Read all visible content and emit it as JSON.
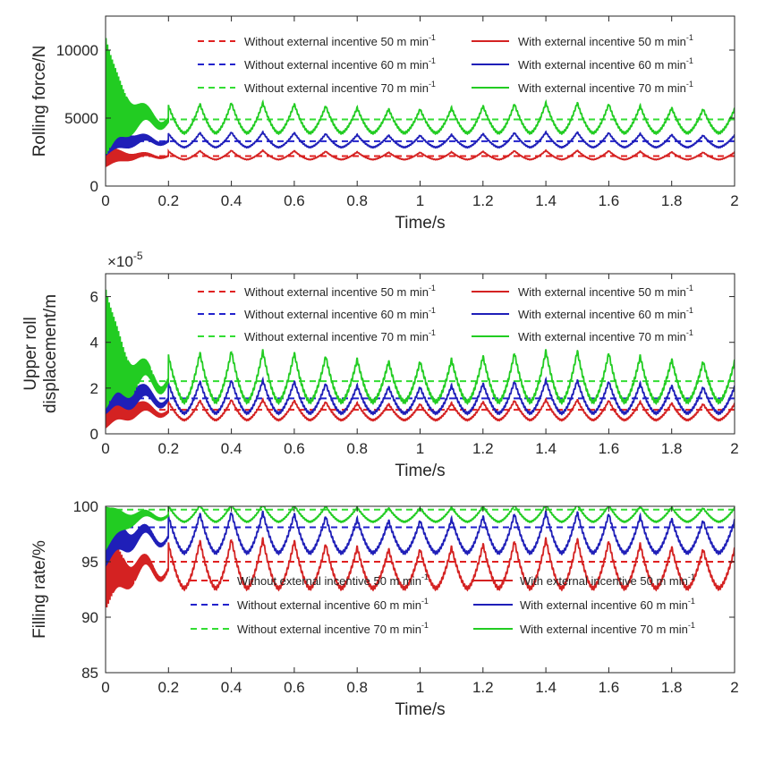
{
  "chart_data": [
    {
      "type": "line",
      "xlabel": "Time/s",
      "ylabel": "Rolling force/N",
      "exponent_label": "",
      "xlim": [
        0,
        2
      ],
      "ylim": [
        0,
        12500
      ],
      "xticks": [
        0,
        0.2,
        0.4,
        0.6,
        0.8,
        1,
        1.2,
        1.4,
        1.6,
        1.8,
        2
      ],
      "yticks": [
        0,
        5000,
        10000
      ],
      "grid": false,
      "legend_position": "top",
      "series": [
        {
          "name": "Without external incentive 50 m min",
          "sup": "-1",
          "style": "dashed",
          "color": "#e02020",
          "kind": "const",
          "value": 2200
        },
        {
          "name": "With external incentive 50 m min",
          "sup": "-1",
          "style": "solid",
          "color": "#d42222",
          "kind": "periodic",
          "base": 1950,
          "amp": 600,
          "startup_peak": 3000,
          "startup_min": 1400
        },
        {
          "name": "Without external incentive 60 m min",
          "sup": "-1",
          "style": "dashed",
          "color": "#2222cc",
          "kind": "const",
          "value": 3300
        },
        {
          "name": "With external incentive 60 m min",
          "sup": "-1",
          "style": "solid",
          "color": "#1f1fb8",
          "kind": "periodic",
          "base": 2850,
          "amp": 1000,
          "startup_peak": 5500,
          "startup_min": 2200
        },
        {
          "name": "Without external incentive 70 m min",
          "sup": "-1",
          "style": "dashed",
          "color": "#33dd33",
          "kind": "const",
          "value": 4900
        },
        {
          "name": "With external incentive 70 m min",
          "sup": "-1",
          "style": "solid",
          "color": "#22cc22",
          "kind": "periodic",
          "base": 3900,
          "amp": 2000,
          "startup_peak": 11200,
          "startup_min": 2000
        }
      ]
    },
    {
      "type": "line",
      "xlabel": "Time/s",
      "ylabel": "Upper roll",
      "ylabel2": "displacement/m",
      "exponent_label": "×10",
      "exponent_sup": "-5",
      "xlim": [
        0,
        2
      ],
      "ylim": [
        0,
        7
      ],
      "xticks": [
        0,
        0.2,
        0.4,
        0.6,
        0.8,
        1,
        1.2,
        1.4,
        1.6,
        1.8,
        2
      ],
      "yticks": [
        0,
        2,
        4,
        6
      ],
      "grid": false,
      "legend_position": "top",
      "series": [
        {
          "name": "Without external incentive 50 m min",
          "sup": "-1",
          "style": "dashed",
          "color": "#e02020",
          "kind": "const",
          "value": 1.05
        },
        {
          "name": "With external incentive 50 m min",
          "sup": "-1",
          "style": "solid",
          "color": "#d42222",
          "kind": "periodic",
          "base": 0.6,
          "amp": 0.8,
          "startup_peak": 3.0,
          "startup_min": 0.2
        },
        {
          "name": "Without external incentive 60 m min",
          "sup": "-1",
          "style": "dashed",
          "color": "#2222cc",
          "kind": "const",
          "value": 1.55
        },
        {
          "name": "With external incentive 60 m min",
          "sup": "-1",
          "style": "solid",
          "color": "#1f1fb8",
          "kind": "periodic",
          "base": 0.9,
          "amp": 1.3,
          "startup_peak": 4.5,
          "startup_min": 0.8
        },
        {
          "name": "Without external incentive 70 m min",
          "sup": "-1",
          "style": "dashed",
          "color": "#33dd33",
          "kind": "const",
          "value": 2.3
        },
        {
          "name": "With external incentive 70 m min",
          "sup": "-1",
          "style": "solid",
          "color": "#22cc22",
          "kind": "periodic",
          "base": 1.4,
          "amp": 2.0,
          "startup_peak": 6.5,
          "startup_min": 1.0
        }
      ]
    },
    {
      "type": "line",
      "xlabel": "Time/s",
      "ylabel": "Filling rate/%",
      "exponent_label": "",
      "xlim": [
        0,
        2
      ],
      "ylim": [
        85,
        100
      ],
      "xticks": [
        0,
        0.2,
        0.4,
        0.6,
        0.8,
        1,
        1.2,
        1.4,
        1.6,
        1.8,
        2
      ],
      "yticks": [
        85,
        90,
        95,
        100
      ],
      "grid": false,
      "legend_position": "bottom",
      "series": [
        {
          "name": "Without external incentive 50 m min",
          "sup": "-1",
          "style": "dashed",
          "color": "#e02020",
          "kind": "const",
          "value": 95
        },
        {
          "name": "With external incentive 50 m min",
          "sup": "-1",
          "style": "solid",
          "color": "#d42222",
          "kind": "periodic",
          "base": 92.6,
          "amp": 4.0,
          "startup_peak": 97.5,
          "startup_min": 90.5
        },
        {
          "name": "Without external incentive 60 m min",
          "sup": "-1",
          "style": "dashed",
          "color": "#2222cc",
          "kind": "const",
          "value": 98.1
        },
        {
          "name": "With external incentive 60 m min",
          "sup": "-1",
          "style": "solid",
          "color": "#1f1fb8",
          "kind": "periodic",
          "base": 95.8,
          "amp": 3.3,
          "startup_peak": 100,
          "startup_min": 94.5
        },
        {
          "name": "Without external incentive 70 m min",
          "sup": "-1",
          "style": "dashed",
          "color": "#33dd33",
          "kind": "const",
          "value": 99.7
        },
        {
          "name": "With external incentive 70 m min",
          "sup": "-1",
          "style": "solid",
          "color": "#22cc22",
          "kind": "periodic",
          "base": 98.6,
          "amp": 1.4,
          "startup_peak": 100,
          "startup_min": 96
        }
      ]
    }
  ]
}
